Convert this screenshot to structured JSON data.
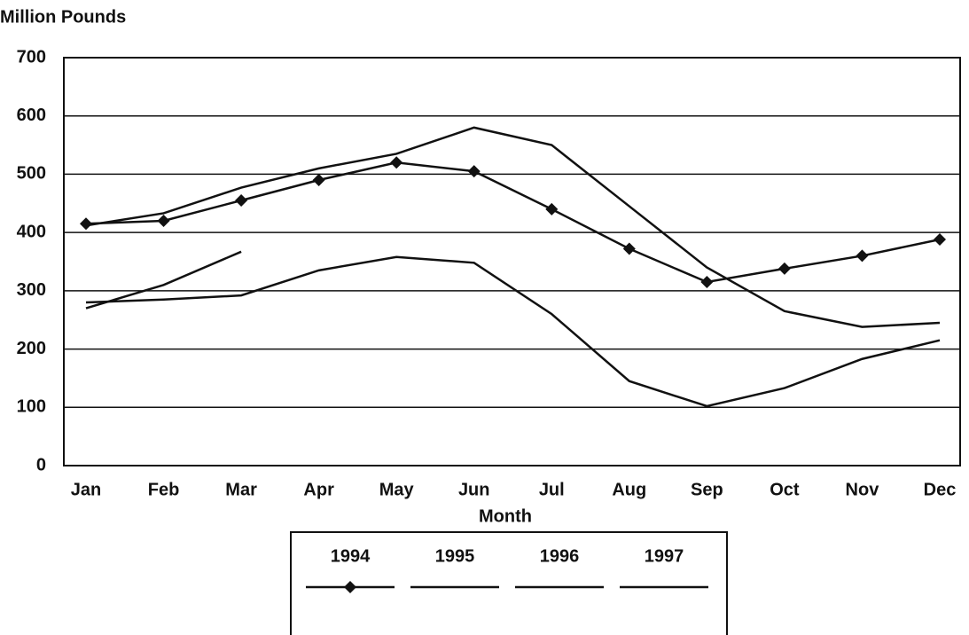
{
  "chart_data": {
    "type": "line",
    "y_label": "Million Pounds",
    "x_label": "Month",
    "categories": [
      "Jan",
      "Feb",
      "Mar",
      "Apr",
      "May",
      "Jun",
      "Jul",
      "Aug",
      "Sep",
      "Oct",
      "Nov",
      "Dec"
    ],
    "series": [
      {
        "name": "1994",
        "color": "#111111",
        "marker": "diamond",
        "values": [
          415,
          420,
          455,
          490,
          520,
          505,
          440,
          372,
          315,
          338,
          360,
          388
        ]
      },
      {
        "name": "1995",
        "color": "#111111",
        "marker": "none",
        "values": [
          412,
          433,
          477,
          510,
          535,
          580,
          550,
          445,
          340,
          265,
          238,
          245
        ]
      },
      {
        "name": "1996",
        "color": "#111111",
        "marker": "none",
        "values": [
          280,
          285,
          292,
          335,
          358,
          348,
          260,
          145,
          102,
          133,
          183,
          215
        ]
      },
      {
        "name": "1997",
        "color": "#111111",
        "marker": "none",
        "values": [
          270,
          310,
          367,
          null,
          null,
          null,
          null,
          null,
          null,
          null,
          null,
          null
        ]
      }
    ],
    "ylim": [
      0,
      700
    ],
    "yticks": [
      0,
      100,
      200,
      300,
      400,
      500,
      600,
      700
    ],
    "grid": true
  }
}
